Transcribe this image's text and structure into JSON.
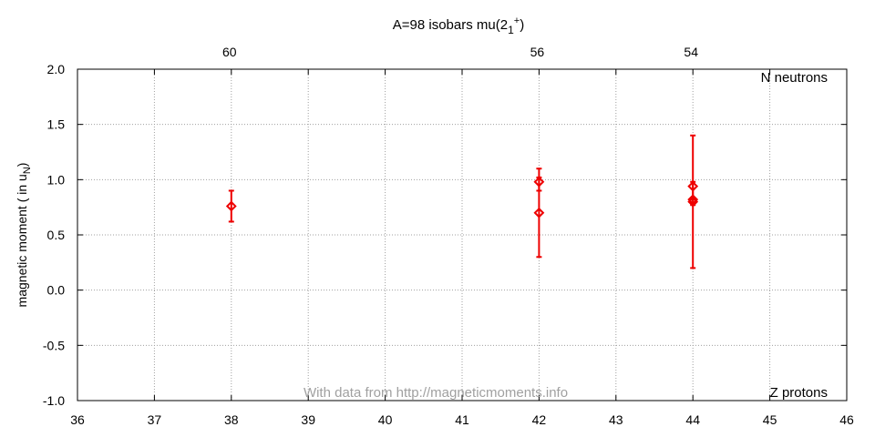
{
  "chart_data": {
    "type": "scatter",
    "title_main": "A=98 isobars mu(2",
    "title_sub": "1",
    "title_sup": "+",
    "title_close": ")",
    "ylabel_main": "magnetic moment ( in u",
    "ylabel_sub": "N",
    "ylabel_close": ")",
    "xlim": [
      36,
      46
    ],
    "ylim": [
      -1.0,
      2.0
    ],
    "x_ticks": [
      "36",
      "37",
      "38",
      "39",
      "40",
      "41",
      "42",
      "43",
      "44",
      "45",
      "46"
    ],
    "y_ticks": [
      "-1.0",
      "-0.5",
      "0.0",
      "0.5",
      "1.0",
      "1.5",
      "2.0"
    ],
    "top_ticks": [
      {
        "x": 38,
        "label": "60"
      },
      {
        "x": 42,
        "label": "56"
      },
      {
        "x": 44,
        "label": "54"
      }
    ],
    "grid": true,
    "annotation_top_right": "N neutrons",
    "annotation_bottom_right": "Z protons",
    "credit": "With data from http://magneticmoments.info",
    "marker_color": "#ee0000",
    "points": [
      {
        "x": 38,
        "y": 0.76,
        "ylow": 0.62,
        "yhigh": 0.9
      },
      {
        "x": 42,
        "y": 0.98,
        "ylow": 0.9,
        "yhigh": 1.1
      },
      {
        "x": 42,
        "y": 0.7,
        "ylow": 0.3,
        "yhigh": 1.02
      },
      {
        "x": 44,
        "y": 0.94,
        "ylow": 0.82,
        "yhigh": 1.4
      },
      {
        "x": 44,
        "y": 0.82,
        "ylow": 0.2,
        "yhigh": 0.98
      },
      {
        "x": 44,
        "y": 0.8,
        "ylow": 0.77,
        "yhigh": 0.83
      }
    ]
  }
}
